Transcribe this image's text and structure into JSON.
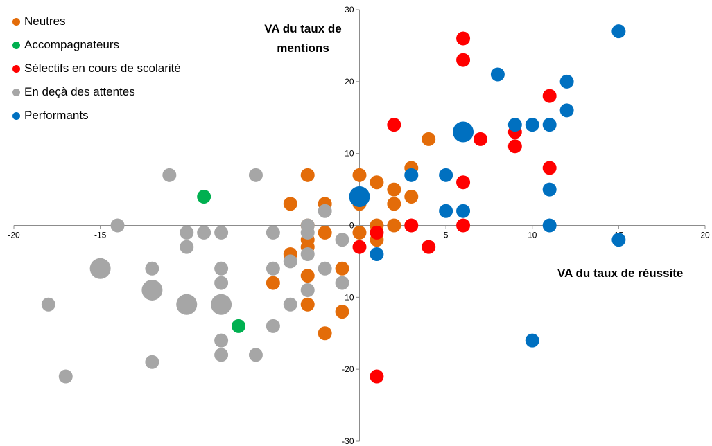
{
  "chart_data": {
    "type": "scatter",
    "xlabel": "VA du taux de réussite",
    "ylabel": "VA du taux de mentions",
    "xlim": [
      -20,
      20
    ],
    "ylim": [
      -30,
      30
    ],
    "xticks": [
      -20,
      -15,
      -10,
      -5,
      0,
      5,
      10,
      15,
      20
    ],
    "yticks": [
      -30,
      -20,
      -10,
      0,
      10,
      20,
      30
    ],
    "legend_position": "top-left",
    "series": [
      {
        "name": "Neutres",
        "color": "#E36C09",
        "points": [
          {
            "x": -3,
            "y": 7
          },
          {
            "x": -4,
            "y": 3
          },
          {
            "x": -2,
            "y": 3
          },
          {
            "x": -3,
            "y": 0
          },
          {
            "x": -3,
            "y": -2
          },
          {
            "x": -3,
            "y": -3
          },
          {
            "x": -4,
            "y": -4
          },
          {
            "x": -3,
            "y": -7
          },
          {
            "x": -5,
            "y": -8
          },
          {
            "x": -3,
            "y": -11
          },
          {
            "x": -1,
            "y": -6
          },
          {
            "x": -1,
            "y": -12
          },
          {
            "x": -2,
            "y": -15
          },
          {
            "x": -2,
            "y": -1
          },
          {
            "x": 0,
            "y": 7
          },
          {
            "x": 0,
            "y": 3
          },
          {
            "x": 0,
            "y": -1
          },
          {
            "x": 1,
            "y": 6
          },
          {
            "x": 1,
            "y": 0
          },
          {
            "x": 1,
            "y": -2
          },
          {
            "x": 2,
            "y": 5
          },
          {
            "x": 2,
            "y": 3
          },
          {
            "x": 2,
            "y": 0
          },
          {
            "x": 3,
            "y": 8
          },
          {
            "x": 3,
            "y": 4
          },
          {
            "x": 4,
            "y": 12
          }
        ]
      },
      {
        "name": "Accompagnateurs",
        "color": "#00B050",
        "points": [
          {
            "x": -9,
            "y": 4
          },
          {
            "x": -7,
            "y": -14
          }
        ]
      },
      {
        "name": "Sélectifs en cours de scolarité",
        "color": "#FF0000",
        "points": [
          {
            "x": 6,
            "y": 26
          },
          {
            "x": 6,
            "y": 23
          },
          {
            "x": 2,
            "y": 14
          },
          {
            "x": 7,
            "y": 12
          },
          {
            "x": 9,
            "y": 13
          },
          {
            "x": 9,
            "y": 11
          },
          {
            "x": 11,
            "y": 18
          },
          {
            "x": 11,
            "y": 8
          },
          {
            "x": 6,
            "y": 6
          },
          {
            "x": 6,
            "y": 0
          },
          {
            "x": 3,
            "y": 0
          },
          {
            "x": 4,
            "y": -3
          },
          {
            "x": 0,
            "y": -3
          },
          {
            "x": 1,
            "y": -1
          },
          {
            "x": 1,
            "y": -21
          }
        ]
      },
      {
        "name": "En deçà des attentes",
        "color": "#A6A6A6",
        "points": [
          {
            "x": -11,
            "y": 7
          },
          {
            "x": -6,
            "y": 7
          },
          {
            "x": -14,
            "y": 0
          },
          {
            "x": -10,
            "y": -1
          },
          {
            "x": -9,
            "y": -1
          },
          {
            "x": -8,
            "y": -1
          },
          {
            "x": -5,
            "y": -1
          },
          {
            "x": -10,
            "y": -3
          },
          {
            "x": -3,
            "y": 0
          },
          {
            "x": -3,
            "y": -1
          },
          {
            "x": -2,
            "y": 2
          },
          {
            "x": -1,
            "y": -2
          },
          {
            "x": -15,
            "y": -6,
            "size": "large"
          },
          {
            "x": -12,
            "y": -6
          },
          {
            "x": -8,
            "y": -6
          },
          {
            "x": -8,
            "y": -8
          },
          {
            "x": -5,
            "y": -6
          },
          {
            "x": -4,
            "y": -5
          },
          {
            "x": -3,
            "y": -4
          },
          {
            "x": -2,
            "y": -6
          },
          {
            "x": -12,
            "y": -9,
            "size": "large"
          },
          {
            "x": -10,
            "y": -11,
            "size": "large"
          },
          {
            "x": -8,
            "y": -11,
            "size": "large"
          },
          {
            "x": -4,
            "y": -11
          },
          {
            "x": -3,
            "y": -9
          },
          {
            "x": -1,
            "y": -8
          },
          {
            "x": -18,
            "y": -11
          },
          {
            "x": -5,
            "y": -14
          },
          {
            "x": -8,
            "y": -16
          },
          {
            "x": -8,
            "y": -18
          },
          {
            "x": -6,
            "y": -18
          },
          {
            "x": -12,
            "y": -19
          },
          {
            "x": -17,
            "y": -21
          }
        ]
      },
      {
        "name": "Performants",
        "color": "#0070C0",
        "points": [
          {
            "x": 15,
            "y": 27
          },
          {
            "x": 12,
            "y": 20
          },
          {
            "x": 8,
            "y": 21
          },
          {
            "x": 12,
            "y": 16
          },
          {
            "x": 9,
            "y": 14
          },
          {
            "x": 10,
            "y": 14
          },
          {
            "x": 11,
            "y": 14
          },
          {
            "x": 6,
            "y": 13,
            "size": "large"
          },
          {
            "x": 3,
            "y": 7
          },
          {
            "x": 5,
            "y": 7
          },
          {
            "x": 11,
            "y": 5
          },
          {
            "x": 5,
            "y": 2
          },
          {
            "x": 6,
            "y": 2
          },
          {
            "x": 11,
            "y": 0
          },
          {
            "x": 15,
            "y": -2
          },
          {
            "x": 0,
            "y": 4,
            "size": "large"
          },
          {
            "x": 1,
            "y": -4
          },
          {
            "x": 10,
            "y": -16
          }
        ]
      }
    ]
  }
}
